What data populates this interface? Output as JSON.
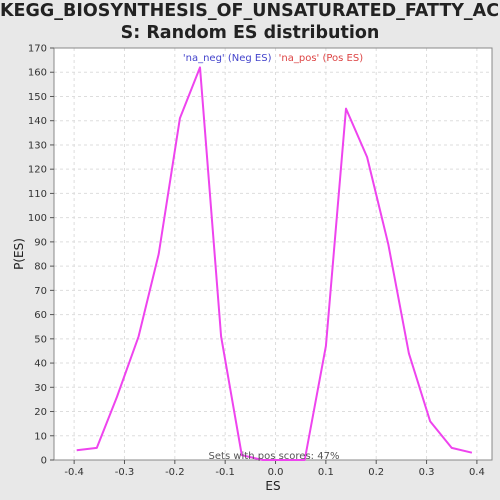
{
  "chart_data": {
    "type": "line",
    "title_lines": [
      "KEGG_BIOSYNTHESIS_OF_UNSATURATED_FATTY_ACID",
      "S: Random ES distribution"
    ],
    "xlabel": "ES",
    "ylabel": "P(ES)",
    "xlim": [
      -0.44,
      0.43
    ],
    "ylim": [
      0,
      170
    ],
    "x_ticks": [
      -0.4,
      -0.3,
      -0.2,
      -0.1,
      0.0,
      0.1,
      0.2,
      0.3,
      0.4
    ],
    "x_tick_labels": [
      "-0.4",
      "-0.3",
      "-0.2",
      "-0.1",
      "0.0",
      "0.1",
      "0.2",
      "0.3",
      "0.4"
    ],
    "y_ticks": [
      0,
      10,
      20,
      30,
      40,
      50,
      60,
      70,
      80,
      90,
      100,
      110,
      120,
      130,
      140,
      150,
      160,
      170
    ],
    "y_tick_labels": [
      "0",
      "10",
      "20",
      "30",
      "40",
      "50",
      "60",
      "70",
      "80",
      "90",
      "100",
      "110",
      "120",
      "130",
      "140",
      "150",
      "160",
      "170"
    ],
    "grid": true,
    "series": [
      {
        "color": "#ee44ee",
        "x": [
          -0.395,
          -0.355,
          -0.315,
          -0.272,
          -0.232,
          -0.19,
          -0.15,
          -0.108,
          -0.067,
          -0.025,
          0.017,
          0.058,
          0.1,
          0.14,
          0.182,
          0.224,
          0.265,
          0.307,
          0.35,
          0.39
        ],
        "y": [
          4,
          5,
          26,
          51,
          85,
          141,
          162,
          51,
          2,
          0,
          0,
          0,
          47,
          145,
          125,
          89,
          44,
          16,
          5,
          3
        ]
      }
    ],
    "legend": {
      "position": "top-center",
      "neg_text": "'na_neg' (Neg ES)",
      "pos_text": "'na_pos' (Pos ES)",
      "neg_color": "#4444cc",
      "pos_color": "#dd4444"
    },
    "annotation": "Sets with pos scores: 47%"
  }
}
